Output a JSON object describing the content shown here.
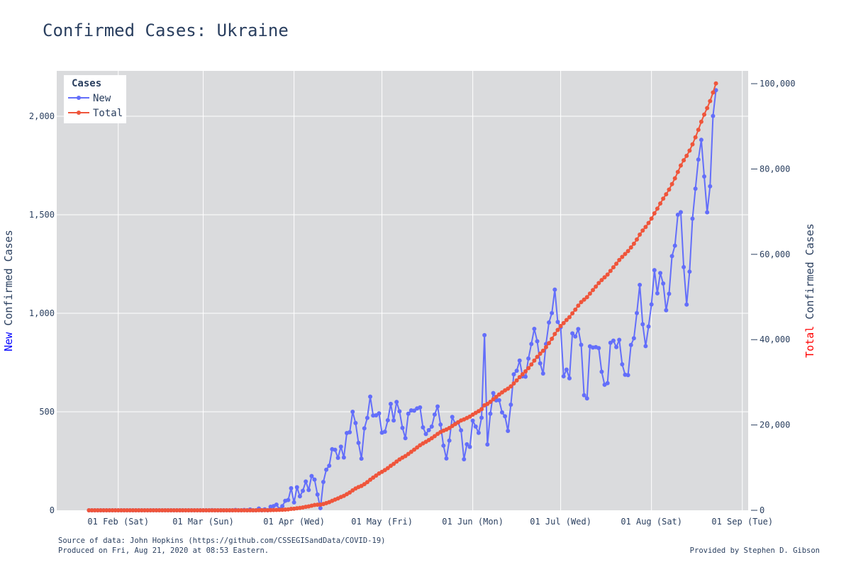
{
  "colors": {
    "new": "#636efa",
    "total": "#ef553b",
    "plot_bg": "#dadbdd",
    "grid": "#ffffff",
    "text": "#2a3f5f",
    "new_word": "#0000ff",
    "total_word": "#ff0000"
  },
  "chart_data": {
    "type": "line",
    "title": "Confirmed Cases: Ukraine",
    "x_ticks": [
      "01 Feb (Sat)",
      "01 Mar (Sun)",
      "01 Apr (Wed)",
      "01 May (Fri)",
      "01 Jun (Mon)",
      "01 Jul (Wed)",
      "01 Aug (Sat)",
      "01 Sep (Tue)"
    ],
    "x_tick_dates": [
      "2020-02-01",
      "2020-03-01",
      "2020-04-01",
      "2020-05-01",
      "2020-06-01",
      "2020-07-01",
      "2020-08-01",
      "2020-09-01"
    ],
    "x_range": [
      "2020-01-11",
      "2020-09-03"
    ],
    "x_start": "2020-01-22",
    "x_end": "2020-08-20",
    "y_left": {
      "label_highlight": "New",
      "label_rest": " Confirmed Cases",
      "range": [
        0,
        2230
      ],
      "ticks": [
        0,
        500,
        1000,
        1500,
        2000
      ],
      "tick_labels": [
        "0",
        "500",
        "1,000",
        "1,500",
        "2,000"
      ]
    },
    "y_right": {
      "label_highlight": "Total",
      "label_rest": " Confirmed Cases",
      "range": [
        0,
        103000
      ],
      "ticks": [
        0,
        20000,
        40000,
        60000,
        80000,
        100000
      ],
      "tick_labels": [
        "0",
        "20,000",
        "40,000",
        "60,000",
        "80,000",
        "100,000"
      ]
    },
    "legend": {
      "title": "Cases",
      "position": "top-left"
    },
    "grid": true,
    "series": [
      {
        "name": "New",
        "axis": "left",
        "values": [
          0,
          0,
          0,
          0,
          0,
          0,
          0,
          0,
          0,
          0,
          0,
          0,
          0,
          0,
          0,
          0,
          0,
          0,
          0,
          0,
          0,
          0,
          0,
          0,
          0,
          0,
          0,
          0,
          0,
          0,
          0,
          0,
          0,
          0,
          0,
          0,
          0,
          0,
          0,
          0,
          0,
          0,
          1,
          0,
          0,
          0,
          0,
          0,
          0,
          0,
          2,
          0,
          0,
          2,
          0,
          4,
          0,
          0,
          9,
          0,
          5,
          0,
          18,
          21,
          29,
          6,
          21,
          48,
          52,
          112,
          40,
          117,
          71,
          99,
          146,
          103,
          174,
          156,
          80,
          11,
          144,
          206,
          226,
          310,
          307,
          266,
          323,
          268,
          392,
          396,
          500,
          443,
          342,
          262,
          416,
          469,
          577,
          481,
          482,
          492,
          394,
          399,
          457,
          540,
          456,
          550,
          502,
          418,
          366,
          490,
          507,
          506,
          517,
          522,
          421,
          387,
          407,
          425,
          486,
          527,
          435,
          328,
          263,
          354,
          474,
          440,
          446,
          406,
          259,
          335,
          322,
          455,
          425,
          393,
          470,
          889,
          334,
          490,
          595,
          558,
          559,
          497,
          477,
          403,
          536,
          690,
          708,
          760,
          680,
          678,
          770,
          844,
          921,
          858,
          746,
          694,
          844,
          953,
          1001,
          1120,
          956,
          929,
          680,
          714,
          670,
          898,
          882,
          920,
          840,
          584,
          568,
          832,
          826,
          828,
          823,
          703,
          637,
          645,
          850,
          861,
          828,
          865,
          741,
          688,
          686,
          839,
          873,
          1001,
          1144,
          944,
          833,
          933,
          1045,
          1219,
          1101,
          1204,
          1151,
          1015,
          1099,
          1290,
          1343,
          1500,
          1513,
          1234,
          1044,
          1211,
          1480,
          1632,
          1780,
          1880,
          1694,
          1512,
          1644,
          2001,
          2132
        ]
      },
      {
        "name": "Total",
        "axis": "right",
        "values": [
          0,
          0,
          0,
          0,
          0,
          0,
          0,
          0,
          0,
          0,
          0,
          0,
          0,
          0,
          0,
          0,
          0,
          0,
          0,
          0,
          0,
          0,
          0,
          0,
          0,
          0,
          0,
          0,
          0,
          0,
          0,
          0,
          0,
          0,
          0,
          0,
          0,
          0,
          0,
          0,
          0,
          0,
          1,
          1,
          1,
          1,
          1,
          1,
          1,
          1,
          3,
          3,
          3,
          5,
          5,
          9,
          9,
          9,
          18,
          18,
          23,
          23,
          41,
          62,
          91,
          97,
          118,
          166,
          218,
          330,
          370,
          487,
          558,
          657,
          803,
          906,
          1080,
          1236,
          1316,
          1327,
          1471,
          1677,
          1903,
          2213,
          2520,
          2786,
          3109,
          3377,
          3769,
          4165,
          4665,
          5108,
          5450,
          5712,
          6128,
          6597,
          7174,
          7655,
          8137,
          8629,
          9023,
          9422,
          9879,
          10419,
          10875,
          11425,
          11927,
          12345,
          12711,
          13201,
          13708,
          14214,
          14731,
          15253,
          15674,
          16061,
          16468,
          16893,
          17379,
          17906,
          18341,
          18669,
          18932,
          19286,
          19760,
          20200,
          20646,
          21052,
          21311,
          21646,
          21968,
          22423,
          22848,
          23241,
          23711,
          24600,
          24934,
          25424,
          26019,
          26577,
          27136,
          27633,
          28110,
          28513,
          29049,
          29739,
          30447,
          31207,
          31887,
          32565,
          33335,
          34179,
          35100,
          35958,
          36704,
          37398,
          38242,
          39195,
          40196,
          41316,
          42272,
          43201,
          43881,
          44595,
          45265,
          46163,
          47045,
          47965,
          48805,
          49389,
          49957,
          50789,
          51615,
          52443,
          53266,
          53969,
          54606,
          55251,
          56101,
          56962,
          57790,
          58655,
          59396,
          60084,
          60770,
          61609,
          62482,
          63483,
          64627,
          65571,
          66404,
          67337,
          68382,
          69601,
          70702,
          71906,
          73057,
          74072,
          75171,
          76461,
          77804,
          79304,
          80817,
          82051,
          83095,
          84306,
          85786,
          87418,
          89198,
          91078,
          92772,
          94284,
          95928,
          97929,
          100061
        ]
      }
    ]
  },
  "footer": {
    "source": "Source of data: John Hopkins (https://github.com/CSSEGISandData/COVID-19)",
    "produced": "Produced on Fri, Aug 21, 2020 at 08:53 Eastern.",
    "credit": "Provided by Stephen D. Gibson"
  }
}
